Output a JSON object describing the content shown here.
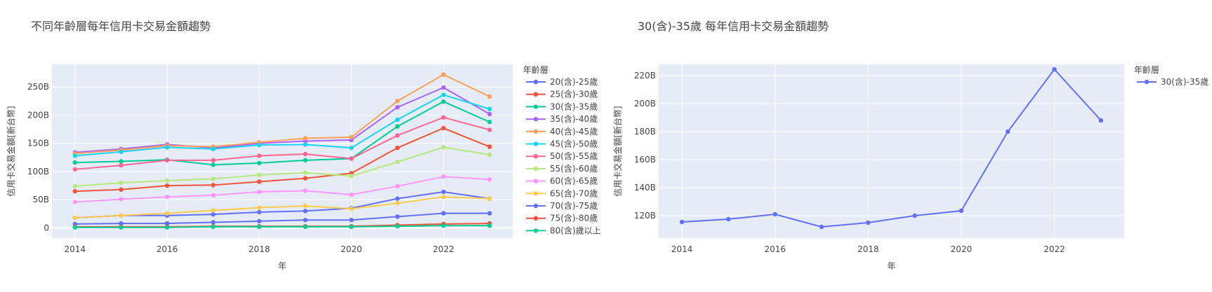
{
  "chart_data": [
    {
      "type": "line",
      "title": "不同年齡層每年信用卡交易金額趨勢",
      "xlabel": "年",
      "ylabel": "信用卡交易金額[新台幣]",
      "legend_title": "年齡層",
      "legend_position": "right",
      "grid": true,
      "x": [
        2014,
        2015,
        2016,
        2017,
        2018,
        2019,
        2020,
        2021,
        2022,
        2023
      ],
      "x_ticks": [
        "2014",
        "2016",
        "2018",
        "2020",
        "2022"
      ],
      "y_ticks": [
        "0",
        "50B",
        "100B",
        "150B",
        "200B",
        "250B"
      ],
      "xlim": [
        2013.5,
        2023.5
      ],
      "ylim": [
        -18,
        290
      ],
      "series": [
        {
          "name": "20(含)-25歲",
          "color": "#636EFA",
          "values": [
            18,
            22,
            22,
            24,
            28,
            30,
            35,
            52,
            64,
            52
          ]
        },
        {
          "name": "25(含)-30歲",
          "color": "#EF553B",
          "values": [
            65,
            68,
            75,
            76,
            82,
            88,
            97,
            142,
            177,
            144
          ]
        },
        {
          "name": "30(含)-35歲",
          "color": "#00CC96",
          "values": [
            116,
            118,
            121,
            112,
            115,
            120,
            123,
            180,
            224,
            188
          ]
        },
        {
          "name": "35(含)-40歲",
          "color": "#AB63FA",
          "values": [
            134,
            140,
            148,
            142,
            150,
            154,
            156,
            214,
            249,
            202
          ]
        },
        {
          "name": "40(含)-45歲",
          "color": "#FFA15A",
          "values": [
            132,
            138,
            146,
            144,
            152,
            159,
            161,
            225,
            272,
            233
          ]
        },
        {
          "name": "45(含)-50歲",
          "color": "#19D3F3",
          "values": [
            128,
            135,
            143,
            140,
            147,
            148,
            142,
            192,
            236,
            211
          ]
        },
        {
          "name": "50(含)-55歲",
          "color": "#FF6692",
          "values": [
            104,
            111,
            120,
            120,
            128,
            131,
            123,
            164,
            196,
            174
          ]
        },
        {
          "name": "55(含)-60歲",
          "color": "#B6E880",
          "values": [
            74,
            80,
            84,
            87,
            94,
            98,
            92,
            117,
            143,
            130
          ]
        },
        {
          "name": "60(含)-65歲",
          "color": "#FF97FF",
          "values": [
            46,
            51,
            55,
            58,
            64,
            66,
            59,
            74,
            91,
            86
          ]
        },
        {
          "name": "65(含)-70歲",
          "color": "#FECB52",
          "values": [
            18,
            22,
            26,
            31,
            36,
            39,
            34,
            44,
            55,
            52
          ]
        },
        {
          "name": "70(含)-75歲",
          "color": "#636EFA",
          "values": [
            7,
            8,
            8,
            10,
            12,
            14,
            14,
            20,
            26,
            26
          ]
        },
        {
          "name": "75(含)-80歲",
          "color": "#EF553B",
          "values": [
            2,
            2,
            2,
            3,
            3,
            3,
            3,
            5,
            7,
            8
          ]
        },
        {
          "name": "80(含)歲以上",
          "color": "#00CC96",
          "values": [
            1,
            1,
            1,
            2,
            2,
            2,
            2,
            3,
            4,
            4
          ]
        }
      ]
    },
    {
      "type": "line",
      "title": "30(含)-35歲 每年信用卡交易金額趨勢",
      "xlabel": "年",
      "ylabel": "信用卡交易金額[新台幣]",
      "legend_title": "年齡層",
      "legend_position": "right",
      "grid": true,
      "x": [
        2014,
        2015,
        2016,
        2017,
        2018,
        2019,
        2020,
        2021,
        2022,
        2023
      ],
      "x_ticks": [
        "2014",
        "2016",
        "2018",
        "2020",
        "2022"
      ],
      "y_ticks": [
        "120B",
        "140B",
        "160B",
        "180B",
        "200B",
        "220B"
      ],
      "xlim": [
        2013.5,
        2023.5
      ],
      "ylim": [
        104,
        228
      ],
      "series": [
        {
          "name": "30(含)-35歲",
          "color": "#636EFA",
          "values": [
            115.5,
            117.5,
            121,
            112,
            115,
            120,
            123.5,
            180,
            224.5,
            188
          ]
        }
      ]
    }
  ]
}
